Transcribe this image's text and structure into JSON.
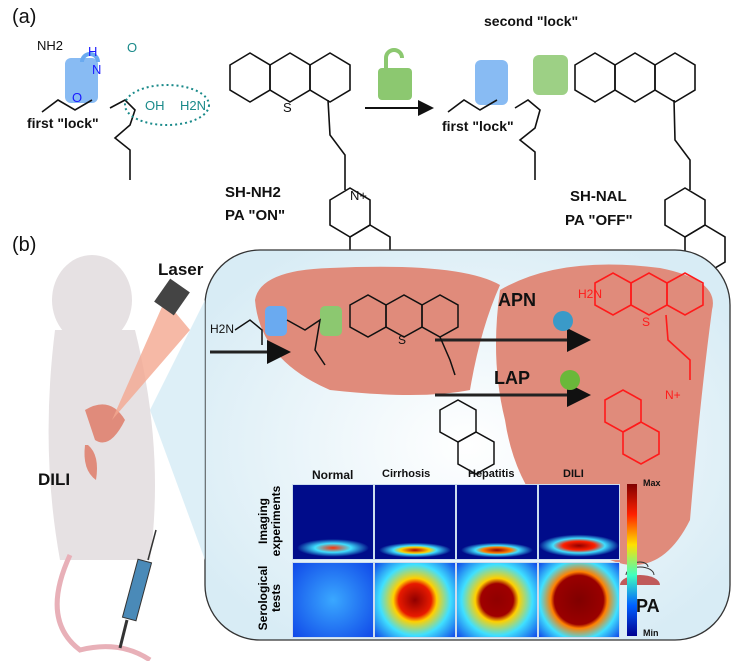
{
  "panel_a": {
    "label": "(a)",
    "left": {
      "lock_label": "first \"lock\"",
      "name": "SH-NH2",
      "state": "PA \"ON\"",
      "groups": {
        "nh2": "NH2",
        "h": "H",
        "n": "N",
        "o_blue": "O",
        "o_teal": "O",
        "oh": "OH",
        "h2n": "H2N",
        "s": "S",
        "nplus": "N+"
      }
    },
    "right": {
      "lock_label_top": "second  \"lock\"",
      "lock_label": "first \"lock\"",
      "name": "SH-NAL",
      "state": "PA \"OFF\""
    }
  },
  "panel_b": {
    "label": "(b)",
    "laser": "Laser",
    "disease": "DILI",
    "enzymes": [
      "APN",
      "LAP"
    ],
    "signal": "PA",
    "product_groups": {
      "h2n": "H2N",
      "s": "S",
      "n": "N+"
    },
    "substrate_groups": {
      "h2n": "H2N",
      "s": "S"
    },
    "columns": [
      "Normal",
      "Cirrhosis",
      "Hepatitis",
      "DILI"
    ],
    "rows": [
      "Imaging experiments",
      "Serological tests"
    ],
    "colorbar": {
      "max": "Max",
      "min": "Min"
    }
  },
  "colors": {
    "blue_lock": "#6aaaf0",
    "green_lock": "#8cc870",
    "teal": "#1a8a8a",
    "liver": "#e08b7b",
    "product": "#ff1a1a"
  }
}
